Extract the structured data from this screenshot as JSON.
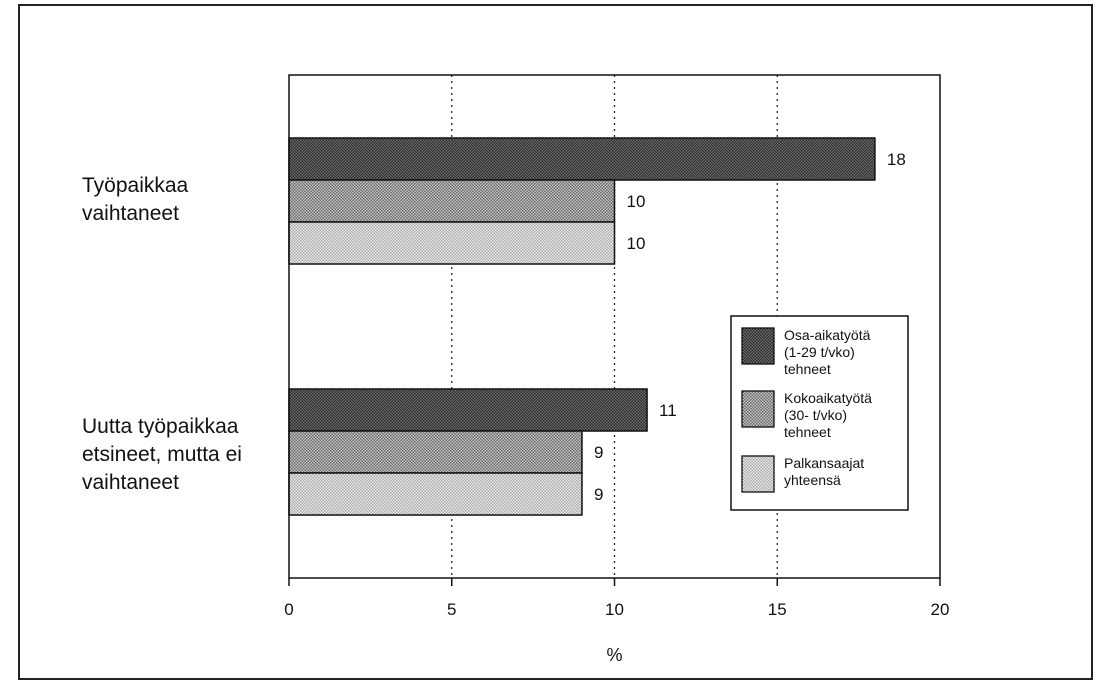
{
  "chart_data": {
    "type": "bar",
    "orientation": "horizontal",
    "categories": [
      "Työpaikkaa vaihtaneet",
      "Uutta työpaikkaa etsineet, mutta ei vaihtaneet"
    ],
    "category_lines": [
      [
        "Työpaikkaa",
        "vaihtaneet"
      ],
      [
        "Uutta työpaikkaa",
        "etsineet, mutta ei",
        "vaihtaneet"
      ]
    ],
    "series": [
      {
        "name": "Osa-aikatyötä (1-29 t/vko) tehneet",
        "name_lines": [
          "Osa-aikatyötä",
          "(1-29 t/vko)",
          "tehneet"
        ],
        "values": [
          18,
          11
        ],
        "pattern": "dark"
      },
      {
        "name": "Kokoaikatyötä (30- t/vko) tehneet",
        "name_lines": [
          "Kokoaikatyötä",
          "(30- t/vko)",
          "tehneet"
        ],
        "values": [
          10,
          9
        ],
        "pattern": "medium"
      },
      {
        "name": "Palkansaajat yhteensä",
        "name_lines": [
          "Palkansaajat",
          "yhteensä"
        ],
        "values": [
          10,
          9
        ],
        "pattern": "light"
      }
    ],
    "xlabel": "%",
    "xlim": [
      0,
      20
    ],
    "xticks": [
      0,
      5,
      10,
      15,
      20
    ],
    "grid": "vertical dotted",
    "legend": "right",
    "data_labels": true
  },
  "colors": {
    "dark": "#5a5a5a",
    "medium": "#9a9a9a",
    "light": "#d6d6d6",
    "ink": "#111111"
  }
}
